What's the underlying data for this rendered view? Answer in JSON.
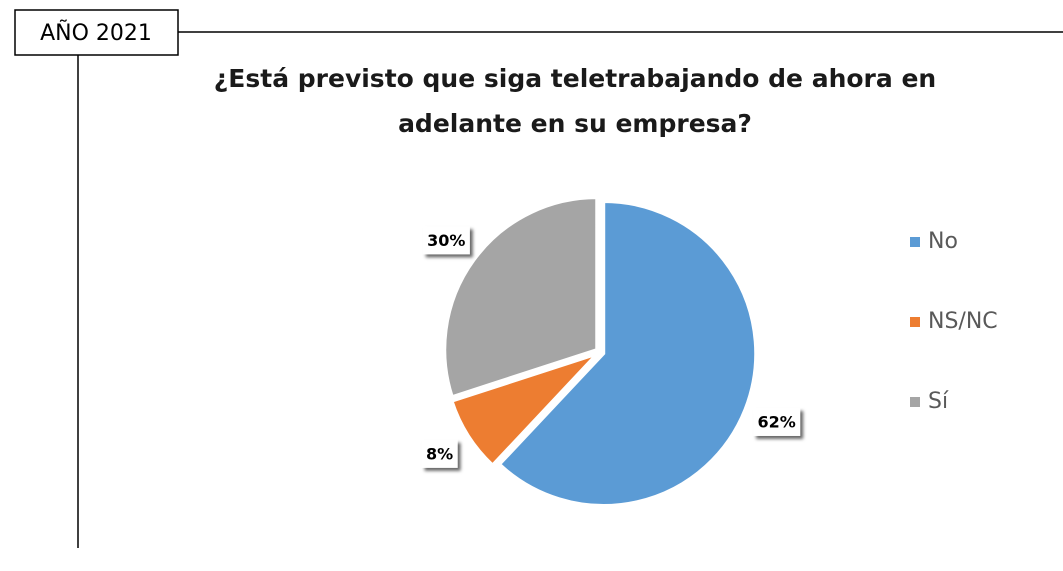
{
  "header": "AÑO 2021",
  "chart_data": {
    "type": "pie",
    "title": [
      "¿Está previsto que siga teletrabajando de ahora en",
      "adelante en su empresa?"
    ],
    "categories": [
      "No",
      "NS/NC",
      "Sí"
    ],
    "values": [
      62,
      8,
      30
    ],
    "value_labels": [
      "62%",
      "8%",
      "30%"
    ],
    "colors": [
      "#5b9bd5",
      "#ed7d31",
      "#a5a5a5"
    ],
    "legend": "right"
  }
}
